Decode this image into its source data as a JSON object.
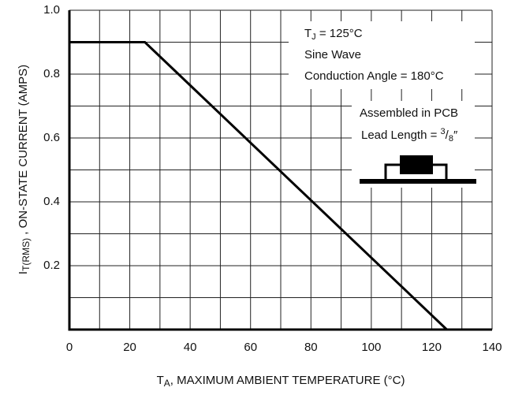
{
  "chart_data": {
    "type": "line",
    "x_label": [
      "T",
      "A",
      ", MAXIMUM AMBIENT TEMPERATURE (°C)"
    ],
    "y_label": [
      "I",
      "T(RMS)",
      " , ON-STATE CURRENT (AMPS)"
    ],
    "annotations": {
      "junction": [
        "T",
        "J",
        " = 125°C"
      ],
      "lines": [
        "Sine Wave",
        "Conduction Angle = 180°C",
        "Assembled in PCB"
      ],
      "lead": [
        "Lead Length = ",
        "3",
        "/",
        "8",
        "″"
      ]
    },
    "x": [
      0,
      25,
      125
    ],
    "series": [
      {
        "color": "#000000",
        "values": [
          0.9,
          0.9,
          0
        ]
      }
    ],
    "xlim": [
      0,
      140
    ],
    "ylim": [
      0,
      1
    ],
    "xticks": [
      0,
      20,
      40,
      60,
      80,
      100,
      120,
      140
    ],
    "yticks": [
      0.2,
      0.4,
      0.6,
      0.8,
      {
        "value": 1,
        "label": "1.0"
      }
    ],
    "x_minor_grid": [
      10,
      30,
      50,
      70,
      90,
      110,
      130
    ],
    "y_minor_grid": [
      0.1,
      0.3,
      0.5,
      0.7,
      0.9
    ],
    "grid": true
  }
}
